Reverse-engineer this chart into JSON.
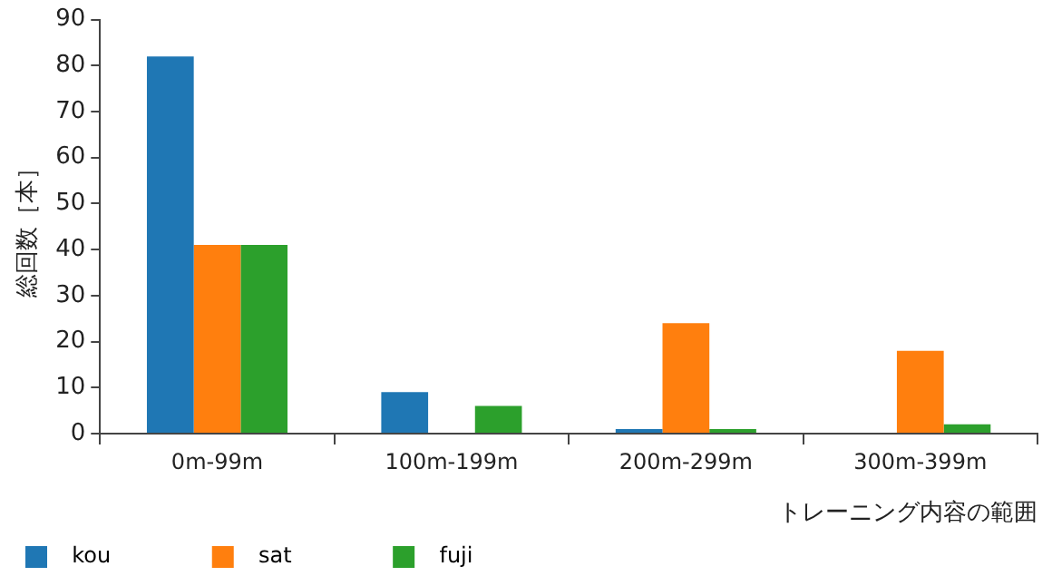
{
  "chart_data": {
    "type": "bar",
    "xlabel": "トレーニング内容の範囲",
    "ylabel": "総回数［本］",
    "categories": [
      "0m-99m",
      "100m-199m",
      "200m-299m",
      "300m-399m"
    ],
    "series": [
      {
        "name": "kou",
        "color": "#1f77b4",
        "values": [
          82,
          9,
          1,
          0
        ]
      },
      {
        "name": "sat",
        "color": "#ff7f0e",
        "values": [
          41,
          0,
          24,
          18
        ]
      },
      {
        "name": "fuji",
        "color": "#2ca02c",
        "values": [
          41,
          6,
          1,
          2
        ]
      }
    ],
    "ylim": [
      0,
      90
    ],
    "yticks": [
      0,
      10,
      20,
      30,
      40,
      50,
      60,
      70,
      80,
      90
    ],
    "grid": false,
    "legend": "bottom"
  }
}
